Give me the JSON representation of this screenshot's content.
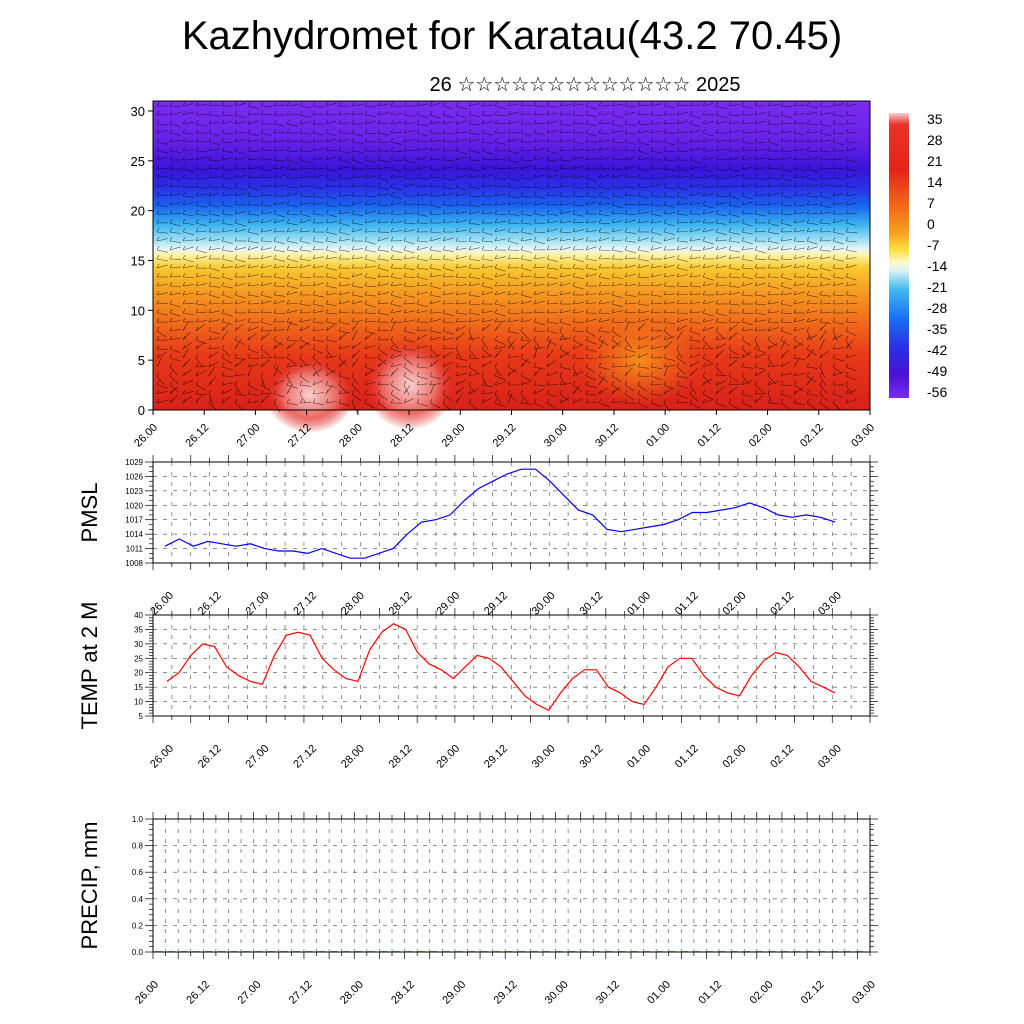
{
  "title": "Kazhydromet for Karatau(43.2 70.45)",
  "subtitle": "26 ☆☆☆☆☆☆☆☆☆☆☆☆☆ 2025",
  "time_labels": [
    "26.00",
    "26.12",
    "27.00",
    "27.12",
    "28.00",
    "28.12",
    "29.00",
    "29.12",
    "30.00",
    "30.12",
    "01.00",
    "01.12",
    "02.00",
    "02.12",
    "03.00"
  ],
  "chart_data": [
    {
      "type": "heatmap",
      "description_source": "cross-section",
      "yticks": [
        0,
        5,
        10,
        15,
        20,
        25,
        30
      ],
      "ylim": [
        0,
        31
      ],
      "colorbar_labels": [
        "35",
        "28",
        "21",
        "14",
        "7",
        "0",
        "-7",
        "-14",
        "-21",
        "-28",
        "-35",
        "-42",
        "-49",
        "-56"
      ],
      "colors": {
        "hot": "#e8221a",
        "warm": "#f07a1a",
        "mild": "#f8c02a",
        "pale": "#fff6b0",
        "cool": "#6ed2f0",
        "cold": "#1a5cf0",
        "coldest": "#7a2af0"
      }
    },
    {
      "type": "line",
      "ylabel": "PMSL",
      "ylim": [
        1008,
        1029
      ],
      "yticks": [
        1008,
        1011,
        1014,
        1017,
        1020,
        1023,
        1026,
        1029
      ],
      "color": "#0000ff",
      "values": [
        1011.5,
        1013,
        1011.5,
        1012.5,
        1012,
        1011.5,
        1012,
        1011,
        1010.5,
        1010.5,
        1010,
        1011,
        1010,
        1009,
        1009,
        1010,
        1011,
        1014,
        1016.5,
        1017,
        1018,
        1021,
        1023.5,
        1025,
        1026.5,
        1027.5,
        1027.5,
        1025,
        1022,
        1019,
        1018,
        1015,
        1014.5,
        1015,
        1015.5,
        1016,
        1017,
        1018.5,
        1018.5,
        1019,
        1019.5,
        1020.5,
        1019.5,
        1018,
        1017.5,
        1018,
        1017.5,
        1016.5
      ]
    },
    {
      "type": "line",
      "ylabel": "TEMP at 2 M",
      "ylim": [
        5,
        40
      ],
      "yticks": [
        5,
        10,
        15,
        20,
        25,
        30,
        35,
        40
      ],
      "color": "#ff0000",
      "values": [
        17,
        20,
        26,
        30,
        29,
        22,
        19,
        17,
        16,
        26,
        33,
        34,
        33,
        25,
        21,
        18,
        17,
        28,
        34,
        37,
        35,
        27,
        23,
        21,
        18,
        22,
        26,
        25,
        22,
        17,
        12,
        9,
        7,
        13,
        18,
        21,
        21,
        15,
        13,
        10,
        9,
        15,
        22,
        25,
        25,
        19,
        15,
        13,
        12,
        19,
        24,
        27,
        26,
        22,
        17,
        15,
        13
      ]
    },
    {
      "type": "bar",
      "ylabel": "PRECIP, mm",
      "ylim": [
        0.0,
        1.0
      ],
      "yticks": [
        "0.0",
        "0.2",
        "0.4",
        "0.6",
        "0.8",
        "1.0"
      ],
      "values": [
        0,
        0,
        0,
        0,
        0,
        0,
        0,
        0,
        0,
        0,
        0,
        0,
        0,
        0,
        0,
        0,
        0,
        0,
        0,
        0,
        0,
        0,
        0,
        0,
        0,
        0,
        0,
        0,
        0,
        0,
        0,
        0,
        0,
        0,
        0,
        0,
        0,
        0,
        0,
        0,
        0,
        0,
        0,
        0,
        0,
        0,
        0,
        0,
        0,
        0,
        0,
        0,
        0,
        0,
        0,
        0,
        0
      ]
    }
  ]
}
